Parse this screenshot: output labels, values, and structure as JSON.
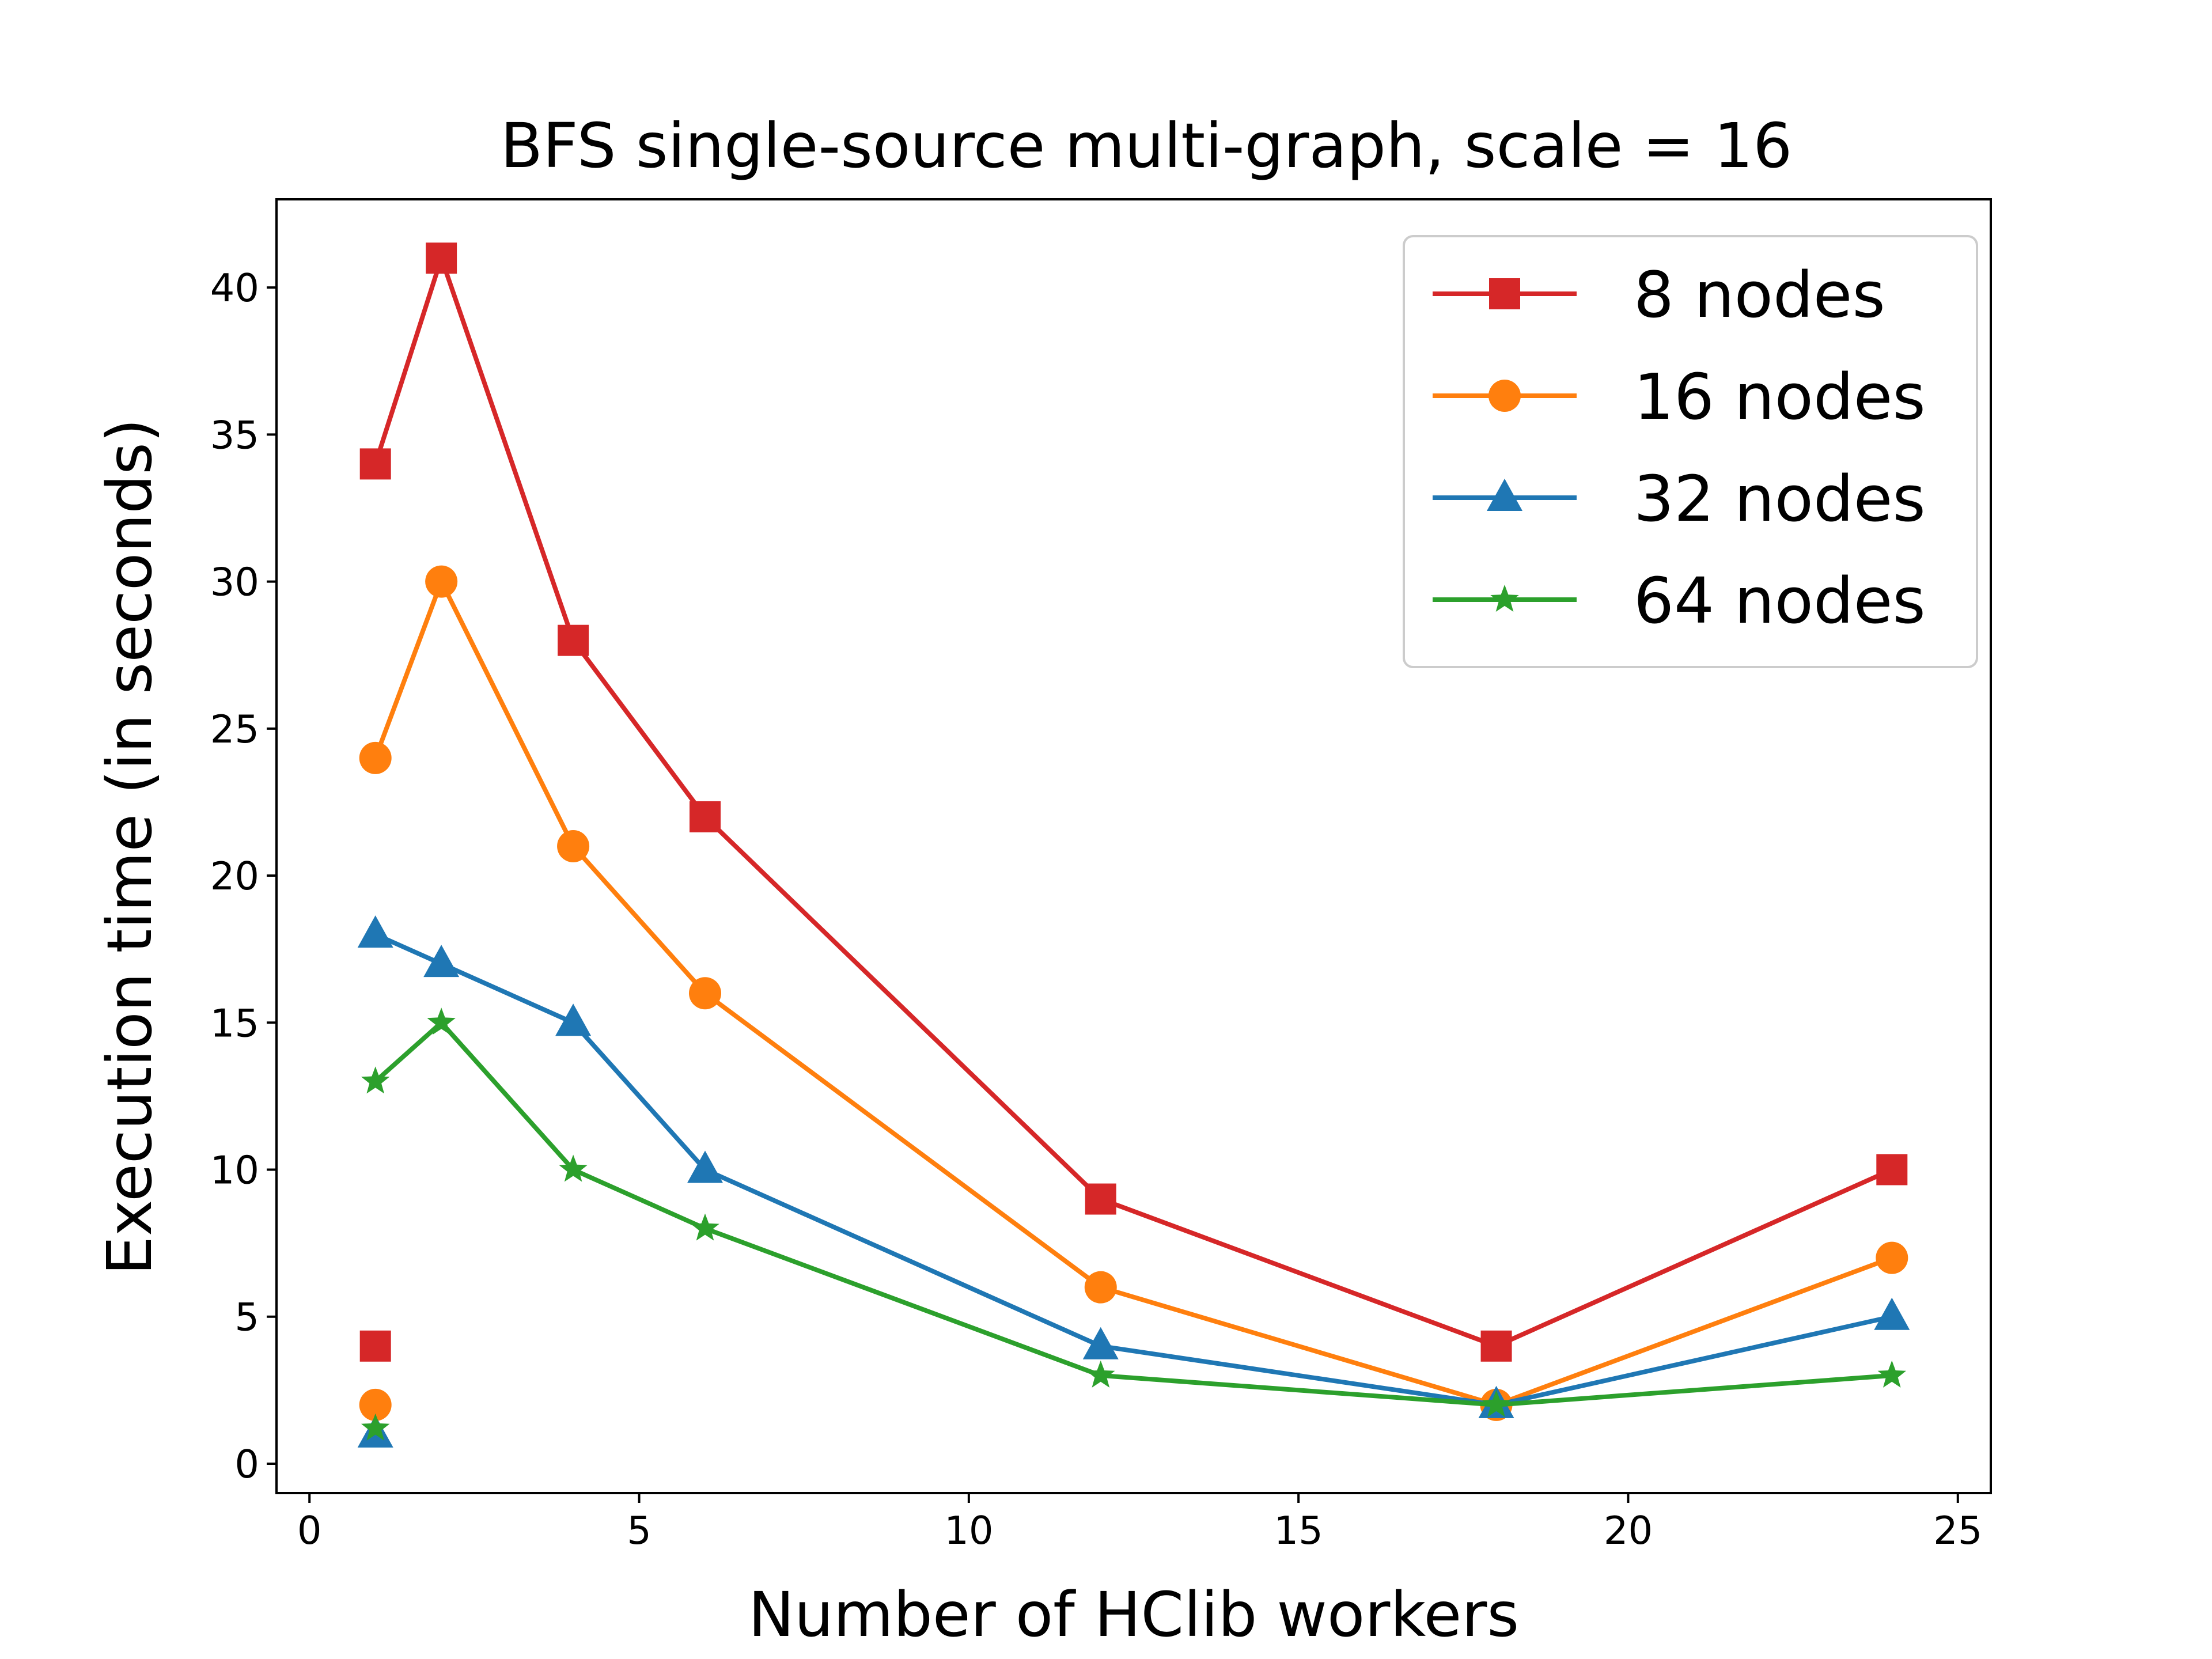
{
  "chart_data": {
    "type": "line",
    "title": "BFS single-source multi-graph, scale = 16",
    "xlabel": "Number of HClib workers",
    "ylabel": "Execution time (in seconds)",
    "xlim": [
      -0.5,
      25.5
    ],
    "ylim": [
      -1,
      43
    ],
    "xticks": [
      0,
      5,
      10,
      15,
      20,
      25
    ],
    "yticks": [
      0,
      5,
      10,
      15,
      20,
      25,
      30,
      35,
      40
    ],
    "grid": false,
    "legend_position": "top-right",
    "series": [
      {
        "name": "8 nodes",
        "color": "#d62728",
        "marker": "square",
        "line": [
          [
            1,
            34
          ],
          [
            2,
            41
          ],
          [
            4,
            28
          ],
          [
            6,
            22
          ],
          [
            12,
            9
          ],
          [
            18,
            4
          ],
          [
            24,
            10
          ]
        ],
        "extra_points": [
          [
            1,
            4
          ]
        ]
      },
      {
        "name": "16 nodes",
        "color": "#ff7f0e",
        "marker": "circle",
        "line": [
          [
            1,
            24
          ],
          [
            2,
            30
          ],
          [
            4,
            21
          ],
          [
            6,
            16
          ],
          [
            12,
            6
          ],
          [
            18,
            2
          ],
          [
            24,
            7
          ]
        ],
        "extra_points": [
          [
            1,
            2
          ]
        ]
      },
      {
        "name": "32 nodes",
        "color": "#1f77b4",
        "marker": "triangle",
        "line": [
          [
            1,
            18
          ],
          [
            2,
            17
          ],
          [
            4,
            15
          ],
          [
            6,
            10
          ],
          [
            12,
            4
          ],
          [
            18,
            2
          ],
          [
            24,
            5
          ]
        ],
        "extra_points": [
          [
            1,
            1
          ]
        ]
      },
      {
        "name": "64 nodes",
        "color": "#2ca02c",
        "marker": "star",
        "line": [
          [
            1,
            13
          ],
          [
            2,
            15
          ],
          [
            4,
            10
          ],
          [
            6,
            8
          ],
          [
            12,
            3
          ],
          [
            18,
            2
          ],
          [
            24,
            3
          ]
        ],
        "extra_points": [
          [
            1,
            1.2
          ]
        ]
      }
    ]
  }
}
